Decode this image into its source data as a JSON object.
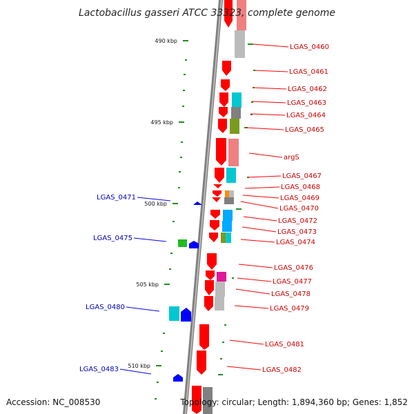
{
  "title": "Lactobacillus gasseri ATCC 33323, complete genome",
  "footer": {
    "accession": "Accession: NC_008530",
    "summary": "Topology: circular; Length: 1,894,360 bp; Genes: 1,852"
  },
  "colors": {
    "backbone": "#808080",
    "forward_gene": "#ff0000",
    "reverse_gene": "#0000ff",
    "forward_label": "#cc0000",
    "reverse_label": "#0000bb",
    "tick": "#228b22"
  },
  "ticks": [
    {
      "label": "490 kbp"
    },
    {
      "label": "495 kbp"
    },
    {
      "label": "500 kbp"
    },
    {
      "label": "505 kbp"
    },
    {
      "label": "510 kbp"
    }
  ],
  "forward_genes": [
    {
      "label": "LGAS_0460"
    },
    {
      "label": "LGAS_0461"
    },
    {
      "label": "LGAS_0462"
    },
    {
      "label": "LGAS_0463"
    },
    {
      "label": "LGAS_0464"
    },
    {
      "label": "LGAS_0465"
    },
    {
      "label": "argS"
    },
    {
      "label": "LGAS_0467"
    },
    {
      "label": "LGAS_0468"
    },
    {
      "label": "LGAS_0469"
    },
    {
      "label": "LGAS_0470"
    },
    {
      "label": "LGAS_0472"
    },
    {
      "label": "LGAS_0473"
    },
    {
      "label": "LGAS_0474"
    },
    {
      "label": "LGAS_0476"
    },
    {
      "label": "LGAS_0477"
    },
    {
      "label": "LGAS_0478"
    },
    {
      "label": "LGAS_0479"
    },
    {
      "label": "LGAS_0481"
    },
    {
      "label": "LGAS_0482"
    }
  ],
  "reverse_genes": [
    {
      "label": "LGAS_0471"
    },
    {
      "label": "LGAS_0475"
    },
    {
      "label": "LGAS_0480"
    },
    {
      "label": "LGAS_0483"
    }
  ]
}
